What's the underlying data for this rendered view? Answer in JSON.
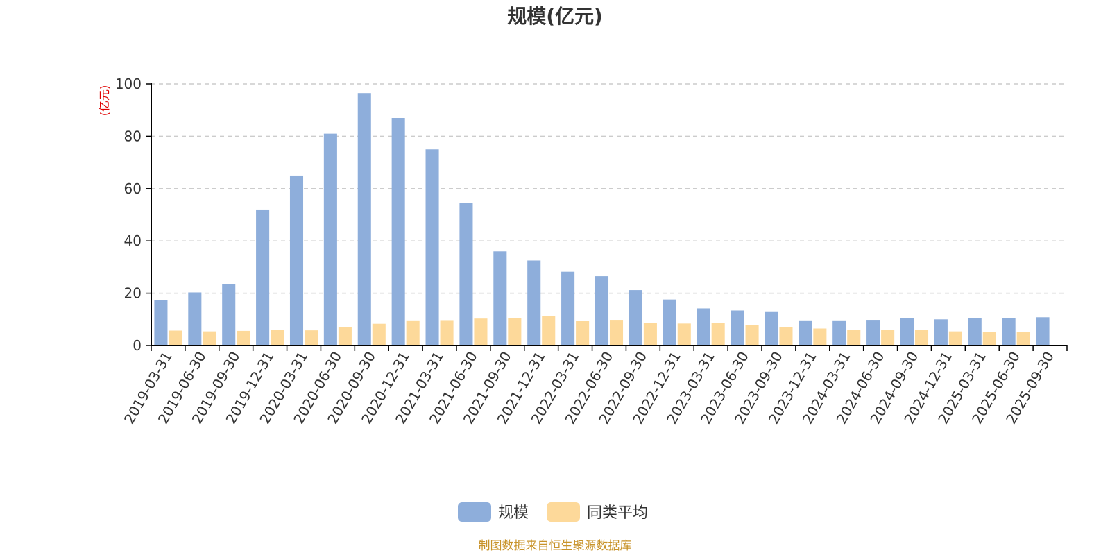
{
  "chart_data": {
    "type": "bar",
    "title": "规模(亿元)",
    "y_unit_label": "(亿元)",
    "ylim": [
      0,
      100
    ],
    "yticks": [
      0,
      20,
      40,
      60,
      80,
      100
    ],
    "grid": true,
    "legend_position": "bottom-center",
    "categories": [
      "2019-03-31",
      "2019-06-30",
      "2019-09-30",
      "2019-12-31",
      "2020-03-31",
      "2020-06-30",
      "2020-09-30",
      "2020-12-31",
      "2021-03-31",
      "2021-06-30",
      "2021-09-30",
      "2021-12-31",
      "2022-03-31",
      "2022-06-30",
      "2022-09-30",
      "2022-12-31",
      "2023-03-31",
      "2023-06-30",
      "2023-09-30",
      "2023-12-31",
      "2024-03-31",
      "2024-06-30",
      "2024-09-30",
      "2024-12-31",
      "2025-03-31",
      "2025-06-30",
      "2025-09-30"
    ],
    "series": [
      {
        "name": "规模",
        "color": "#8eaedb",
        "values": [
          17.5,
          20.3,
          23.6,
          52.0,
          65.0,
          81.0,
          96.5,
          87.0,
          75.0,
          54.5,
          36.0,
          32.5,
          28.2,
          26.5,
          21.2,
          17.6,
          14.2,
          13.4,
          12.8,
          9.6,
          9.6,
          9.8,
          10.4,
          10.0,
          10.6,
          10.6,
          10.8
        ]
      },
      {
        "name": "同类平均",
        "color": "#fdd99a",
        "values": [
          5.7,
          5.4,
          5.6,
          5.9,
          5.8,
          7.0,
          8.3,
          9.6,
          9.7,
          10.3,
          10.4,
          11.2,
          9.4,
          9.8,
          8.7,
          8.4,
          8.6,
          7.9,
          7.0,
          6.5,
          6.1,
          5.9,
          6.1,
          5.4,
          5.3,
          5.2,
          null
        ]
      }
    ]
  },
  "footer": {
    "source_text": "制图数据来自恒生聚源数据库",
    "color": "#c8932a"
  },
  "axis_color": "#000000",
  "grid_color": "#cccccc"
}
